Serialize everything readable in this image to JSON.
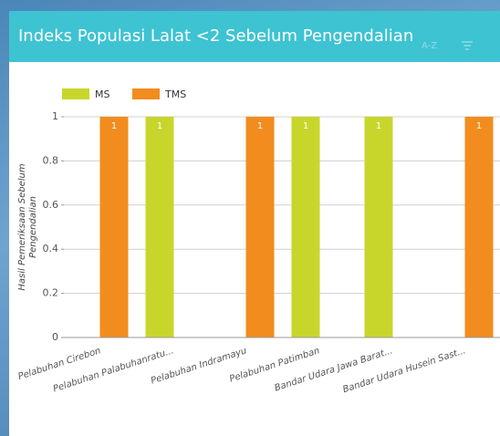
{
  "chart_data": {
    "type": "bar",
    "title": "Indeks Populasi Lalat <2 Sebelum Pengendalian",
    "sort_label": "A-Z",
    "ylabel": [
      "Hasil Pemeriksaan Sebelum",
      "Pengendalian"
    ],
    "categories": [
      "Pelabuhan Cirebon",
      "Pelabuhan Palabuhanratu...",
      "Pelabuhan Indramayu",
      "Pelabuhan Patimban",
      "Bandar Udara Jawa Barat...",
      "Bandar Udara Husein Sast..."
    ],
    "series": [
      {
        "name": "MS",
        "color": "#c8d62b",
        "values": [
          null,
          1,
          null,
          1,
          1,
          null
        ]
      },
      {
        "name": "TMS",
        "color": "#f28c1e",
        "values": [
          1,
          null,
          1,
          null,
          null,
          1
        ]
      }
    ],
    "ylim": [
      0,
      1
    ],
    "yticks": [
      0,
      0.2,
      0.4,
      0.6,
      0.8,
      1
    ],
    "grid": true,
    "legend": "top-left"
  }
}
